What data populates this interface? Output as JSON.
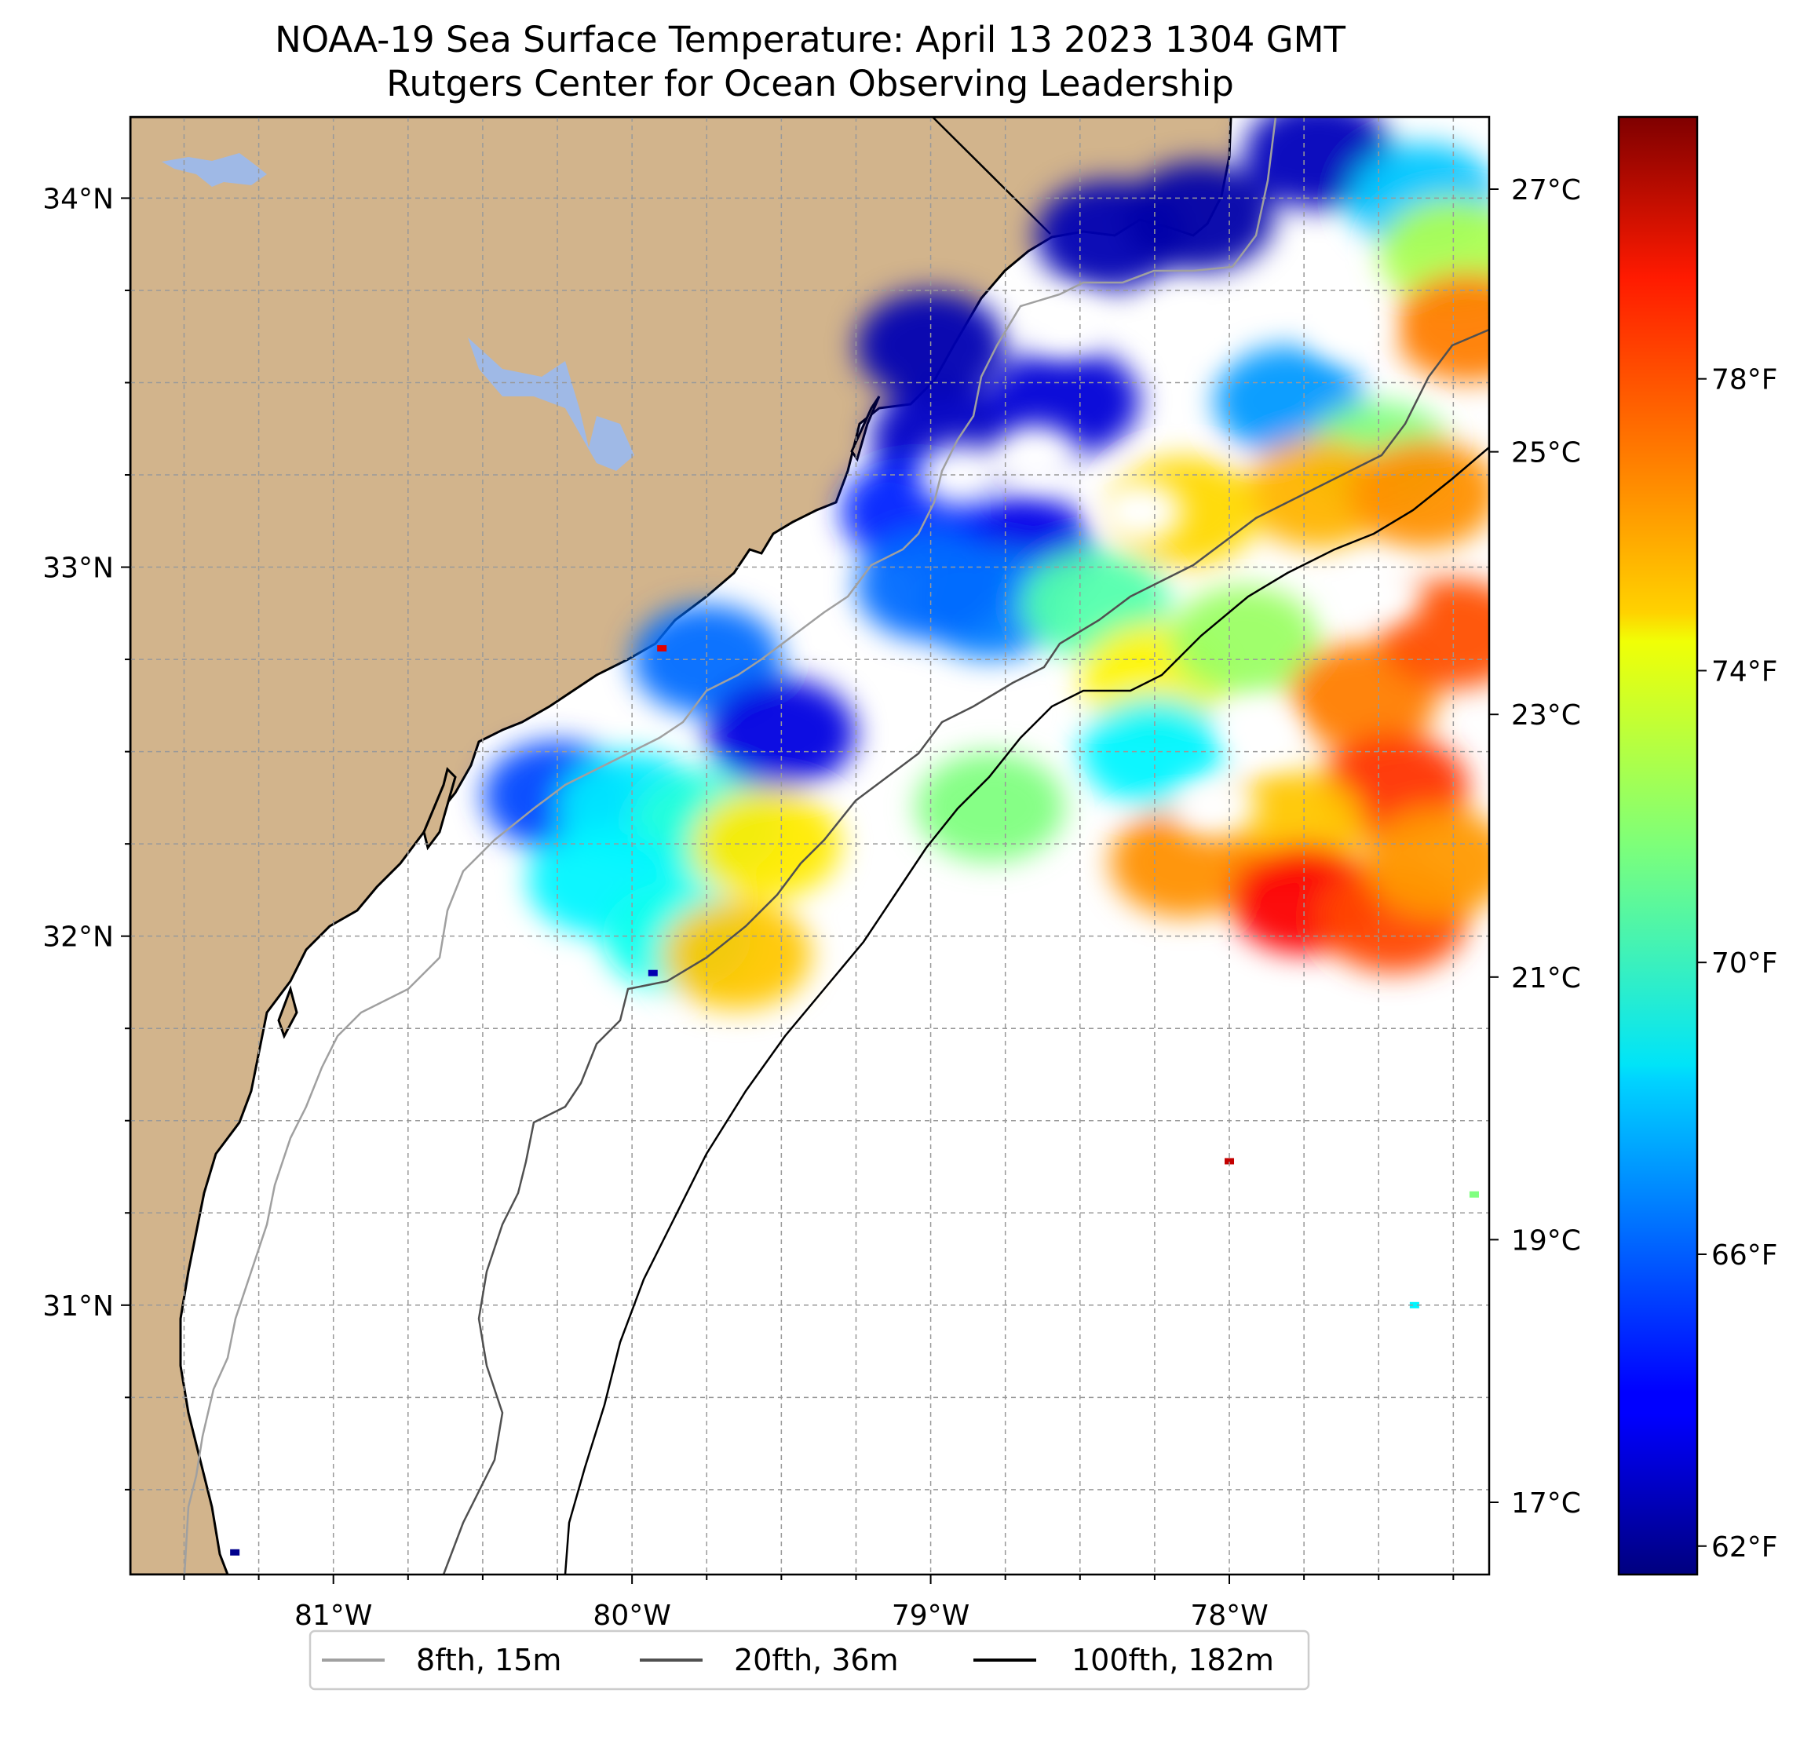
{
  "title": "NOAA-19 Sea Surface Temperature: April 13 2023 1304 GMT",
  "subtitle": "Rutgers Center for Ocean Observing Leadership",
  "map": {
    "lon_range": [
      -81.68,
      -77.13
    ],
    "lat_range": [
      30.27,
      34.22
    ],
    "land_color": "#d2b48c",
    "lake_color": "#9fb9e6",
    "gridlines": true,
    "lon_ticks": [
      {
        "value": -81,
        "label": "81°W"
      },
      {
        "value": -80,
        "label": "80°W"
      },
      {
        "value": -79,
        "label": "79°W"
      },
      {
        "value": -78,
        "label": "78°W"
      }
    ],
    "lat_ticks": [
      {
        "value": 34,
        "label": "34°N"
      },
      {
        "value": 33,
        "label": "33°N"
      },
      {
        "value": 32,
        "label": "32°N"
      },
      {
        "value": 31,
        "label": "31°N"
      }
    ]
  },
  "colorbar": {
    "colormap": "jet",
    "range_c": [
      16.45,
      27.55
    ],
    "celsius_ticks": [
      {
        "value": 17,
        "label": "17°C"
      },
      {
        "value": 19,
        "label": "19°C"
      },
      {
        "value": 21,
        "label": "21°C"
      },
      {
        "value": 23,
        "label": "23°C"
      },
      {
        "value": 25,
        "label": "25°C"
      },
      {
        "value": 27,
        "label": "27°C"
      }
    ],
    "fahrenheit_ticks": [
      {
        "value": 62,
        "label": "62°F"
      },
      {
        "value": 66,
        "label": "66°F"
      },
      {
        "value": 70,
        "label": "70°F"
      },
      {
        "value": 74,
        "label": "74°F"
      },
      {
        "value": 78,
        "label": "78°F"
      }
    ]
  },
  "legend": [
    {
      "label": "8fth, 15m",
      "color": "#a0a0a0"
    },
    {
      "label": "20fth, 36m",
      "color": "#505050"
    },
    {
      "label": "100fth, 182m",
      "color": "#000000"
    }
  ],
  "sst_patches": [
    {
      "lon": -78.95,
      "lat": 33.35,
      "value_c": 17.2
    },
    {
      "lon": -78.7,
      "lat": 33.05,
      "value_c": 17.6
    },
    {
      "lon": -79.0,
      "lat": 33.6,
      "value_c": 17.0
    },
    {
      "lon": -78.55,
      "lat": 33.45,
      "value_c": 17.4
    },
    {
      "lon": -78.4,
      "lat": 33.9,
      "value_c": 17.0
    },
    {
      "lon": -78.1,
      "lat": 33.95,
      "value_c": 16.9
    },
    {
      "lon": -77.7,
      "lat": 34.12,
      "value_c": 17.1
    },
    {
      "lon": -77.35,
      "lat": 34.0,
      "value_c": 20.0
    },
    {
      "lon": -77.25,
      "lat": 33.85,
      "value_c": 22.5
    },
    {
      "lon": -77.2,
      "lat": 33.65,
      "value_c": 24.8
    },
    {
      "lon": -77.8,
      "lat": 33.45,
      "value_c": 19.5
    },
    {
      "lon": -77.5,
      "lat": 33.3,
      "value_c": 22.0
    },
    {
      "lon": -77.7,
      "lat": 33.2,
      "value_c": 24.2
    },
    {
      "lon": -77.35,
      "lat": 33.2,
      "value_c": 24.6
    },
    {
      "lon": -78.15,
      "lat": 33.15,
      "value_c": 23.8
    },
    {
      "lon": -78.8,
      "lat": 32.9,
      "value_c": 19.2
    },
    {
      "lon": -78.45,
      "lat": 32.9,
      "value_c": 21.5
    },
    {
      "lon": -78.25,
      "lat": 32.7,
      "value_c": 23.5
    },
    {
      "lon": -77.95,
      "lat": 32.8,
      "value_c": 22.3
    },
    {
      "lon": -77.55,
      "lat": 32.65,
      "value_c": 24.8
    },
    {
      "lon": -77.25,
      "lat": 32.82,
      "value_c": 25.3
    },
    {
      "lon": -77.45,
      "lat": 32.4,
      "value_c": 25.6
    },
    {
      "lon": -77.8,
      "lat": 32.3,
      "value_c": 24.0
    },
    {
      "lon": -78.15,
      "lat": 32.2,
      "value_c": 24.6
    },
    {
      "lon": -77.75,
      "lat": 32.1,
      "value_c": 26.2
    },
    {
      "lon": -77.45,
      "lat": 32.05,
      "value_c": 25.4
    },
    {
      "lon": -77.3,
      "lat": 32.2,
      "value_c": 24.5
    },
    {
      "lon": -78.25,
      "lat": 32.5,
      "value_c": 20.5
    },
    {
      "lon": -80.25,
      "lat": 32.38,
      "value_c": 18.6
    },
    {
      "lon": -80.0,
      "lat": 32.35,
      "value_c": 20.4
    },
    {
      "lon": -79.75,
      "lat": 32.3,
      "value_c": 21.0
    },
    {
      "lon": -79.55,
      "lat": 32.25,
      "value_c": 23.6
    },
    {
      "lon": -80.1,
      "lat": 32.15,
      "value_c": 20.5
    },
    {
      "lon": -79.85,
      "lat": 32.0,
      "value_c": 20.8
    },
    {
      "lon": -79.65,
      "lat": 31.95,
      "value_c": 24.0
    },
    {
      "lon": -79.75,
      "lat": 32.75,
      "value_c": 19.0
    },
    {
      "lon": -79.5,
      "lat": 32.55,
      "value_c": 17.5
    },
    {
      "lon": -78.8,
      "lat": 32.35,
      "value_c": 22.0
    },
    {
      "lon": -79.05,
      "lat": 33.15,
      "value_c": 18.2
    },
    {
      "lon": -79.0,
      "lat": 32.95,
      "value_c": 19.0
    }
  ],
  "white_gaps": [
    {
      "lon": -78.55,
      "lat": 33.65,
      "value_c": 0
    },
    {
      "lon": -78.15,
      "lat": 33.65,
      "value_c": 0
    },
    {
      "lon": -77.6,
      "lat": 33.65,
      "value_c": 0
    },
    {
      "lon": -78.65,
      "lat": 33.3,
      "value_c": 0
    },
    {
      "lon": -78.3,
      "lat": 33.15,
      "value_c": 0
    },
    {
      "lon": -78.9,
      "lat": 33.25,
      "value_c": 0
    },
    {
      "lon": -77.9,
      "lat": 32.55,
      "value_c": 0
    },
    {
      "lon": -78.05,
      "lat": 32.35,
      "value_c": 0
    },
    {
      "lon": -77.5,
      "lat": 32.92,
      "value_c": 0
    }
  ],
  "point_marks": [
    {
      "lon": -78.0,
      "lat": 31.39,
      "value_c": 26.8
    },
    {
      "lon": -77.38,
      "lat": 31.0,
      "value_c": 20.5
    },
    {
      "lon": -77.18,
      "lat": 31.3,
      "value_c": 22.0
    },
    {
      "lon": -79.93,
      "lat": 31.9,
      "value_c": 17.0
    },
    {
      "lon": -79.9,
      "lat": 32.78,
      "value_c": 26.5
    },
    {
      "lon": -81.33,
      "lat": 30.33,
      "value_c": 16.6
    }
  ]
}
